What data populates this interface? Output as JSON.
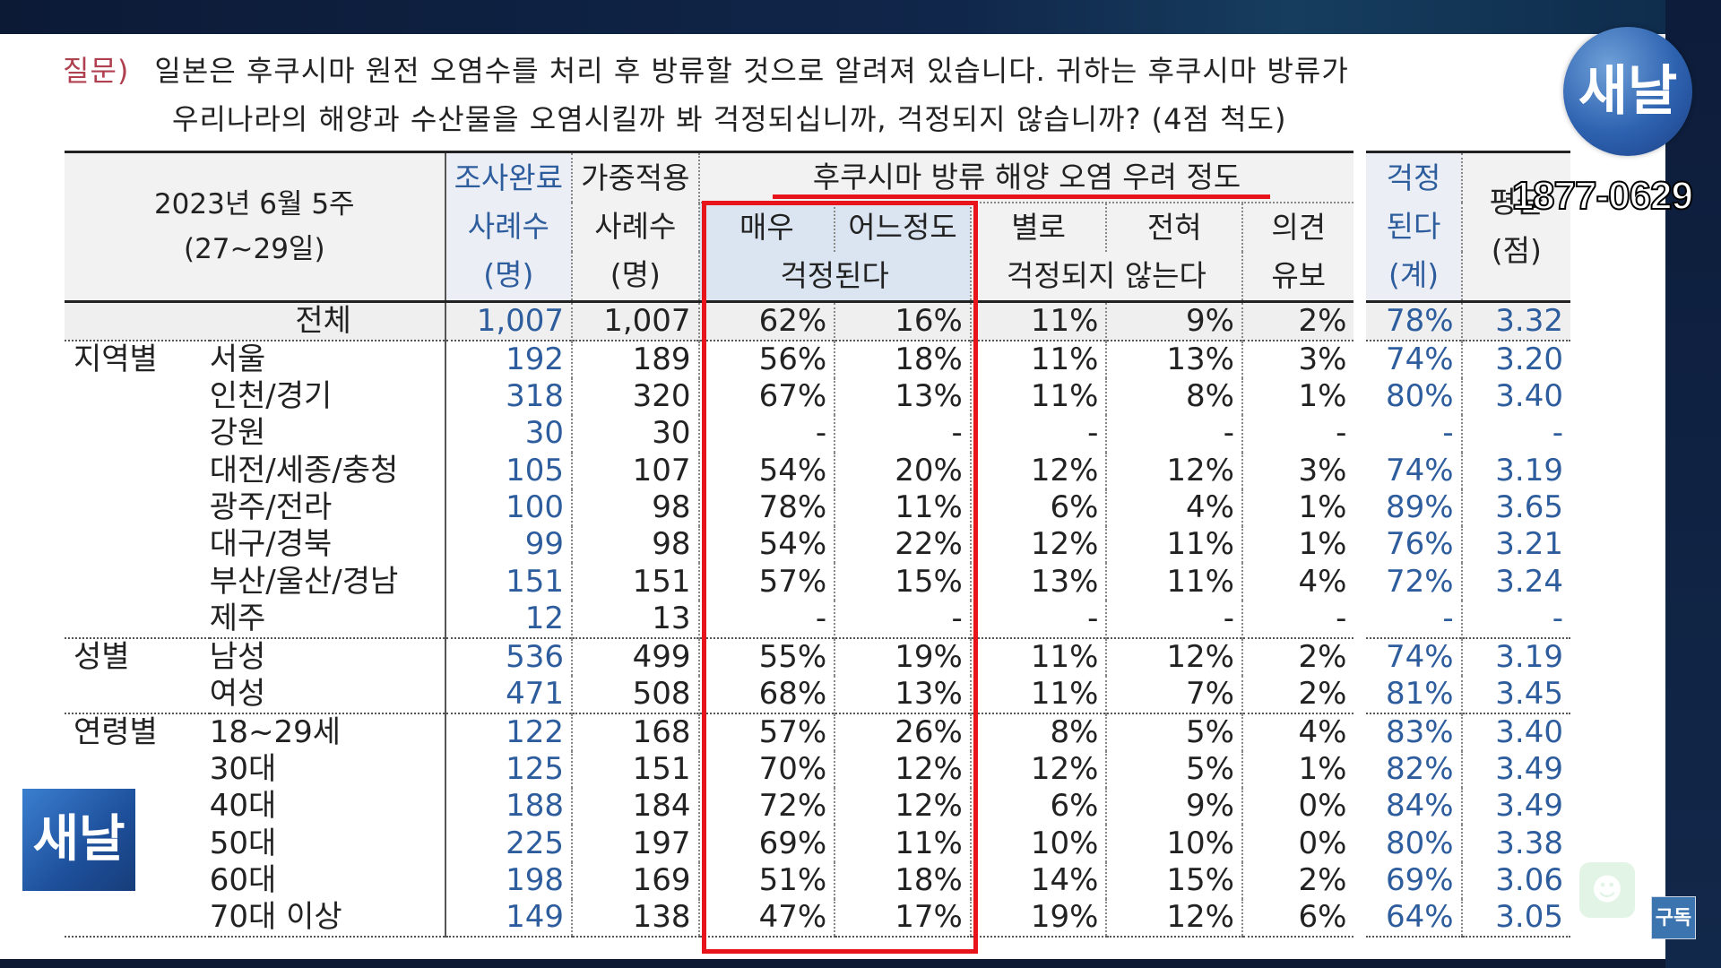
{
  "question": {
    "label": "질문)",
    "line1": "일본은 후쿠시마 원전 오염수를 처리 후 방류할 것으로 알려져 있습니다. 귀하는 후쿠시마 방류가",
    "line2": "우리나라의 해양과 수산물을 오염시킬까 봐 걱정되십니까, 걱정되지 않습니까? (4점 척도)"
  },
  "header": {
    "date_line1": "2023년 6월 5주",
    "date_line2": "(27~29일)",
    "completed_l1": "조사완료",
    "completed_l2": "사례수",
    "completed_l3": "(명)",
    "weighted_l1": "가중적용",
    "weighted_l2": "사례수",
    "weighted_l3": "(명)",
    "concern_title": "후쿠시마 방류 해양 오염 우려 정도",
    "very": "매우",
    "somewhat": "어느정도",
    "worried": "걱정된다",
    "not_much": "별로",
    "not_at_all": "전혀",
    "not_worried": "걱정되지 않는다",
    "opinion_l1": "의견",
    "opinion_l2": "유보",
    "total_worried_l1": "걱정",
    "total_worried_l2": "된다",
    "total_worried_l3": "(계)",
    "avg_l1": "평균",
    "avg_l2": "(점)"
  },
  "rows": [
    {
      "group": "",
      "sub": "전체",
      "n": "1,007",
      "w": "1,007",
      "very": "62%",
      "some": "16%",
      "notmuch": "11%",
      "never": "9%",
      "op": "2%",
      "tot": "78%",
      "avg": "3.32"
    },
    {
      "group": "지역별",
      "sub": "서울",
      "n": "192",
      "w": "189",
      "very": "56%",
      "some": "18%",
      "notmuch": "11%",
      "never": "13%",
      "op": "3%",
      "tot": "74%",
      "avg": "3.20"
    },
    {
      "group": "",
      "sub": "인천/경기",
      "n": "318",
      "w": "320",
      "very": "67%",
      "some": "13%",
      "notmuch": "11%",
      "never": "8%",
      "op": "1%",
      "tot": "80%",
      "avg": "3.40"
    },
    {
      "group": "",
      "sub": "강원",
      "n": "30",
      "w": "30",
      "very": "-",
      "some": "-",
      "notmuch": "-",
      "never": "-",
      "op": "-",
      "tot": "-",
      "avg": "-"
    },
    {
      "group": "",
      "sub": "대전/세종/충청",
      "n": "105",
      "w": "107",
      "very": "54%",
      "some": "20%",
      "notmuch": "12%",
      "never": "12%",
      "op": "3%",
      "tot": "74%",
      "avg": "3.19"
    },
    {
      "group": "",
      "sub": "광주/전라",
      "n": "100",
      "w": "98",
      "very": "78%",
      "some": "11%",
      "notmuch": "6%",
      "never": "4%",
      "op": "1%",
      "tot": "89%",
      "avg": "3.65"
    },
    {
      "group": "",
      "sub": "대구/경북",
      "n": "99",
      "w": "98",
      "very": "54%",
      "some": "22%",
      "notmuch": "12%",
      "never": "11%",
      "op": "1%",
      "tot": "76%",
      "avg": "3.21"
    },
    {
      "group": "",
      "sub": "부산/울산/경남",
      "n": "151",
      "w": "151",
      "very": "57%",
      "some": "15%",
      "notmuch": "13%",
      "never": "11%",
      "op": "4%",
      "tot": "72%",
      "avg": "3.24"
    },
    {
      "group": "",
      "sub": "제주",
      "n": "12",
      "w": "13",
      "very": "-",
      "some": "-",
      "notmuch": "-",
      "never": "-",
      "op": "-",
      "tot": "-",
      "avg": "-"
    },
    {
      "group": "성별",
      "sub": "남성",
      "n": "536",
      "w": "499",
      "very": "55%",
      "some": "19%",
      "notmuch": "11%",
      "never": "12%",
      "op": "2%",
      "tot": "74%",
      "avg": "3.19"
    },
    {
      "group": "",
      "sub": "여성",
      "n": "471",
      "w": "508",
      "very": "68%",
      "some": "13%",
      "notmuch": "11%",
      "never": "7%",
      "op": "2%",
      "tot": "81%",
      "avg": "3.45"
    },
    {
      "group": "연령별",
      "sub": "18~29세",
      "n": "122",
      "w": "168",
      "very": "57%",
      "some": "26%",
      "notmuch": "8%",
      "never": "5%",
      "op": "4%",
      "tot": "83%",
      "avg": "3.40"
    },
    {
      "group": "",
      "sub": "30대",
      "n": "125",
      "w": "151",
      "very": "70%",
      "some": "12%",
      "notmuch": "12%",
      "never": "5%",
      "op": "1%",
      "tot": "82%",
      "avg": "3.49"
    },
    {
      "group": "",
      "sub": "40대",
      "n": "188",
      "w": "184",
      "very": "72%",
      "some": "12%",
      "notmuch": "6%",
      "never": "9%",
      "op": "0%",
      "tot": "84%",
      "avg": "3.49"
    },
    {
      "group": "",
      "sub": "50대",
      "n": "225",
      "w": "197",
      "very": "69%",
      "some": "11%",
      "notmuch": "10%",
      "never": "10%",
      "op": "0%",
      "tot": "80%",
      "avg": "3.38"
    },
    {
      "group": "",
      "sub": "60대",
      "n": "198",
      "w": "169",
      "very": "51%",
      "some": "18%",
      "notmuch": "14%",
      "never": "15%",
      "op": "2%",
      "tot": "69%",
      "avg": "3.06"
    },
    {
      "group": "",
      "sub": "70대 이상",
      "n": "149",
      "w": "138",
      "very": "47%",
      "some": "17%",
      "notmuch": "19%",
      "never": "12%",
      "op": "6%",
      "tot": "64%",
      "avg": "3.05"
    }
  ],
  "overlay": {
    "logo_text": "새날",
    "phone": "1877-0629",
    "subscribe": "구독",
    "bot_icon": "robot-icon"
  },
  "colors": {
    "highlight_red": "#e8141c",
    "blue_value": "#2e5d9e",
    "brand_blue": "#2d62b0"
  }
}
